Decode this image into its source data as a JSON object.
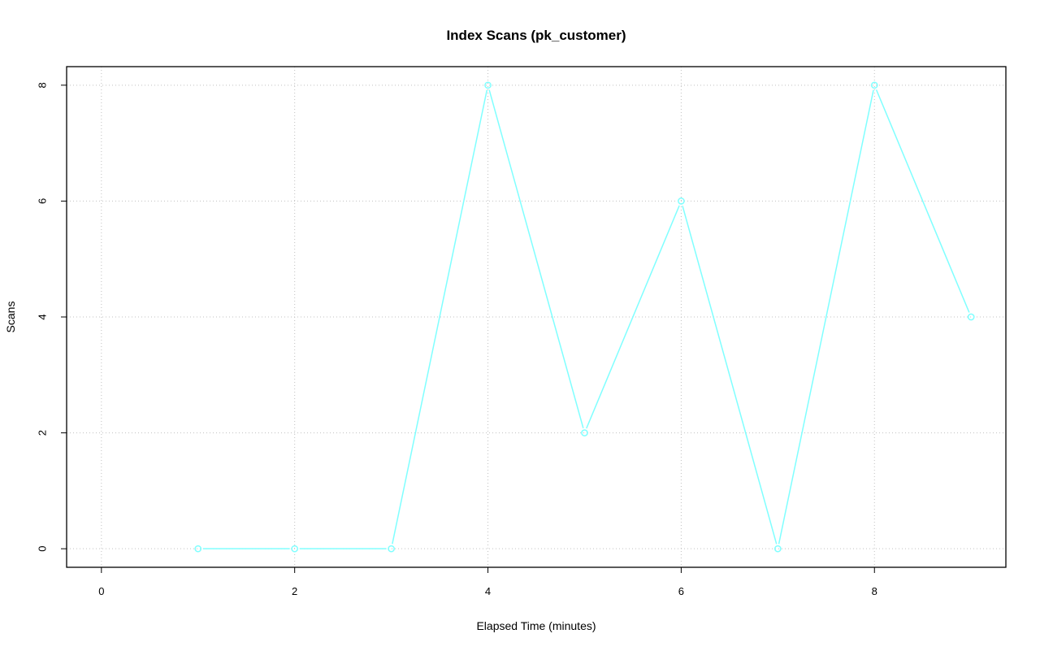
{
  "chart_data": {
    "type": "line",
    "title": "Index Scans (pk_customer)",
    "xlabel": "Elapsed Time (minutes)",
    "ylabel": "Scans",
    "x": [
      1,
      2,
      3,
      4,
      5,
      6,
      7,
      8,
      9
    ],
    "series": [
      {
        "values": [
          0,
          0,
          0,
          8,
          2,
          6,
          0,
          8,
          4
        ],
        "color": "#80ffff",
        "marker": "open-circle"
      }
    ],
    "xlim": [
      0,
      9
    ],
    "ylim": [
      0,
      8
    ],
    "xticks": [
      "0",
      "2",
      "4",
      "6",
      "8"
    ],
    "yticks": [
      "0",
      "2",
      "4",
      "6",
      "8"
    ],
    "grid": true,
    "grid_style": "dotted",
    "grid_color": "#c0c0c0"
  }
}
